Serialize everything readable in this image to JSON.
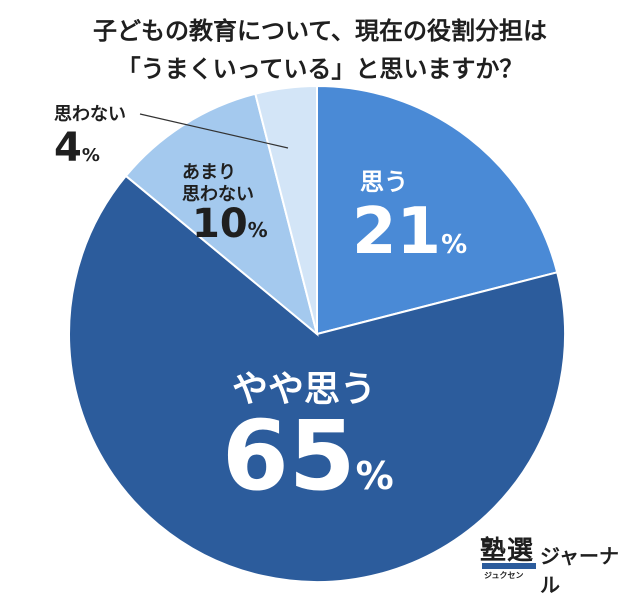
{
  "title": {
    "line1": "子どもの教育について、現在の役割分担は",
    "line2": "「うまくいっている」と思いますか？"
  },
  "chart_data": {
    "type": "pie",
    "title": "子どもの教育について、現在の役割分担は「うまくいっている」と思いますか？",
    "slices": [
      {
        "label": "思う",
        "value": 21,
        "color": "#4a8ad6"
      },
      {
        "label": "やや思う",
        "value": 65,
        "color": "#2c5c9c"
      },
      {
        "label": "あまり思わない",
        "value": 10,
        "color": "#a4c9ee"
      },
      {
        "label": "思わない",
        "value": 4,
        "color": "#d3e5f7"
      }
    ],
    "unit": "%"
  },
  "labels": {
    "omou": {
      "text": "思う",
      "pct": "21",
      "unit": "%"
    },
    "yaya": {
      "text": "やや思う",
      "pct": "65",
      "unit": "%"
    },
    "amari": {
      "line1": "あまり",
      "line2": "思わない",
      "pct": "10",
      "unit": "%"
    },
    "omowanai": {
      "text": "思わない",
      "pct": "4",
      "unit": "%"
    }
  },
  "logo": {
    "kanji": "塾選",
    "kana": "ジュクセン",
    "text": "ジャーナル"
  }
}
